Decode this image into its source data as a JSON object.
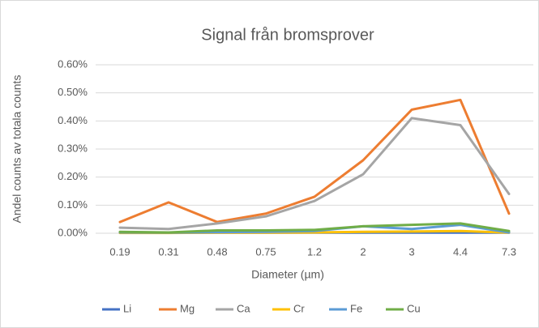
{
  "chart_data": {
    "type": "line",
    "title": "Signal från bromsprover",
    "x_label": "Diameter (µm)",
    "y_label": "Andel counts av totala counts",
    "categories": [
      "0.19",
      "0.31",
      "0.48",
      "0.75",
      "1.2",
      "2",
      "3",
      "4.4",
      "7.3"
    ],
    "series": [
      {
        "name": "Li",
        "color": "#4472c4",
        "values": [
          0.002,
          0.002,
          0.002,
          0.002,
          0.002,
          0.002,
          0.002,
          0.002,
          0.002
        ]
      },
      {
        "name": "Mg",
        "color": "#ed7d31",
        "values": [
          0.04,
          0.11,
          0.04,
          0.07,
          0.13,
          0.26,
          0.44,
          0.475,
          0.07
        ]
      },
      {
        "name": "Ca",
        "color": "#a5a5a5",
        "values": [
          0.02,
          0.015,
          0.035,
          0.06,
          0.115,
          0.21,
          0.41,
          0.385,
          0.14
        ]
      },
      {
        "name": "Cr",
        "color": "#ffc000",
        "values": [
          0.001,
          0.001,
          0.002,
          0.002,
          0.003,
          0.005,
          0.006,
          0.008,
          0.002
        ]
      },
      {
        "name": "Fe",
        "color": "#5b9bd5",
        "values": [
          0.003,
          0.002,
          0.004,
          0.005,
          0.008,
          0.025,
          0.015,
          0.03,
          0.003
        ]
      },
      {
        "name": "Cu",
        "color": "#70ad47",
        "values": [
          0.005,
          0.003,
          0.01,
          0.01,
          0.012,
          0.025,
          0.03,
          0.035,
          0.008
        ]
      }
    ],
    "ylim": [
      0,
      0.6
    ],
    "yticks": [
      {
        "value": 0,
        "label": "0.00%"
      },
      {
        "value": 0.1,
        "label": "0.10%"
      },
      {
        "value": 0.2,
        "label": "0.20%"
      },
      {
        "value": 0.3,
        "label": "0.30%"
      },
      {
        "value": 0.4,
        "label": "0.40%"
      },
      {
        "value": 0.5,
        "label": "0.50%"
      },
      {
        "value": 0.6,
        "label": "0.60%"
      }
    ],
    "grid": true,
    "legend": "bottom"
  }
}
